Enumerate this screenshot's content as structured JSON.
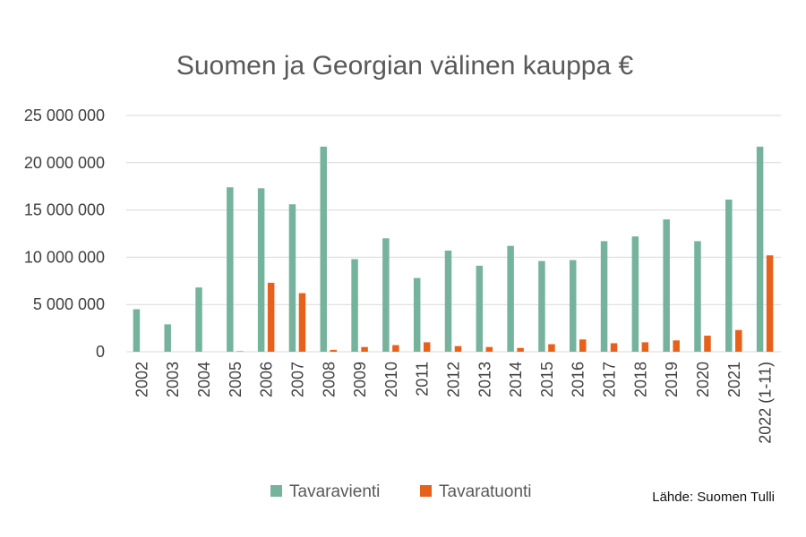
{
  "chart_data": {
    "type": "bar",
    "title": "Suomen ja Georgian välinen kauppa €",
    "xlabel": "",
    "ylabel": "",
    "ylim": [
      0,
      25000000
    ],
    "yticks": [
      0,
      5000000,
      10000000,
      15000000,
      20000000,
      25000000
    ],
    "ytick_labels": [
      "0",
      "5 000 000",
      "10 000 000",
      "15 000 000",
      "20 000 000",
      "25 000 000"
    ],
    "grid": true,
    "legend_position": "bottom",
    "categories": [
      "2002",
      "2003",
      "2004",
      "2005",
      "2006",
      "2007",
      "2008",
      "2009",
      "2010",
      "2011",
      "2012",
      "2013",
      "2014",
      "2015",
      "2016",
      "2017",
      "2018",
      "2019",
      "2020",
      "2021",
      "2022 (1-11)"
    ],
    "series": [
      {
        "name": "Tavaravienti",
        "color": "#76b39d",
        "values": [
          4500000,
          2900000,
          6800000,
          17400000,
          17300000,
          15600000,
          21700000,
          9800000,
          12000000,
          7800000,
          10700000,
          9100000,
          11200000,
          9600000,
          9700000,
          11700000,
          12200000,
          14000000,
          11700000,
          16100000,
          21700000
        ]
      },
      {
        "name": "Tavaratuonti",
        "color": "#e8611a",
        "values": [
          0,
          0,
          0,
          50000,
          7300000,
          6200000,
          200000,
          500000,
          700000,
          1000000,
          600000,
          500000,
          400000,
          800000,
          1300000,
          900000,
          1000000,
          1200000,
          1700000,
          2300000,
          10200000
        ]
      }
    ]
  },
  "source_note": "Lähde: Suomen Tulli"
}
